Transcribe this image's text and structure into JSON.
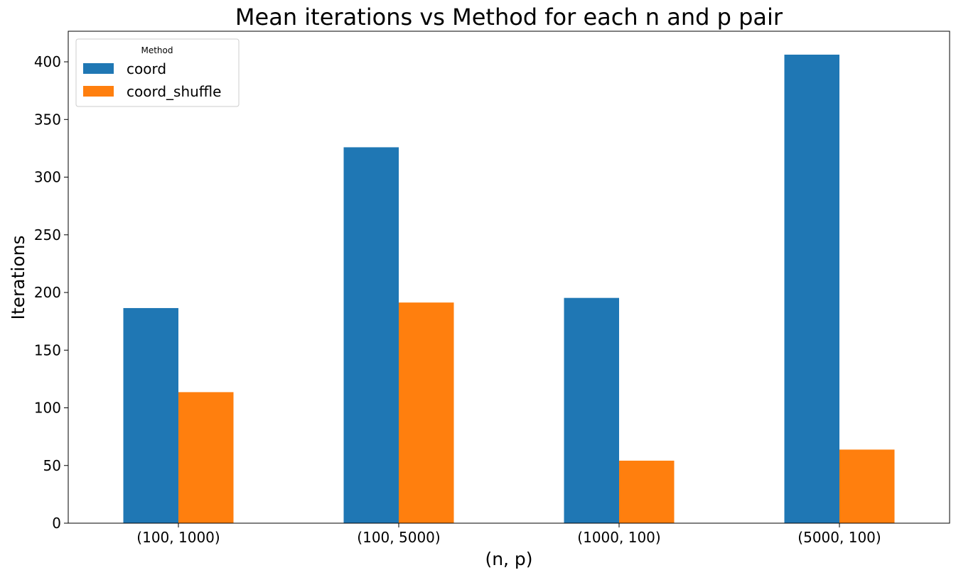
{
  "chart_data": {
    "type": "bar",
    "title": "Mean iterations vs Method for each n and p pair",
    "xlabel": "(n, p)",
    "ylabel": "Iterations",
    "categories": [
      "(100, 1000)",
      "(100, 5000)",
      "(1000, 100)",
      "(5000, 100)"
    ],
    "series": [
      {
        "name": "coord",
        "values": [
          186.5,
          325.9,
          195.3,
          406.2
        ],
        "color": "#1f77b4"
      },
      {
        "name": "coord_shuffle",
        "values": [
          113.6,
          191.3,
          54.2,
          63.8
        ],
        "color": "#ff7f0e"
      }
    ],
    "ylim": [
      0,
      426.5
    ],
    "yticks": [
      0,
      50,
      100,
      150,
      200,
      250,
      300,
      350,
      400
    ],
    "legend": {
      "title": "Method",
      "placement": "top-left"
    },
    "grid": false
  }
}
